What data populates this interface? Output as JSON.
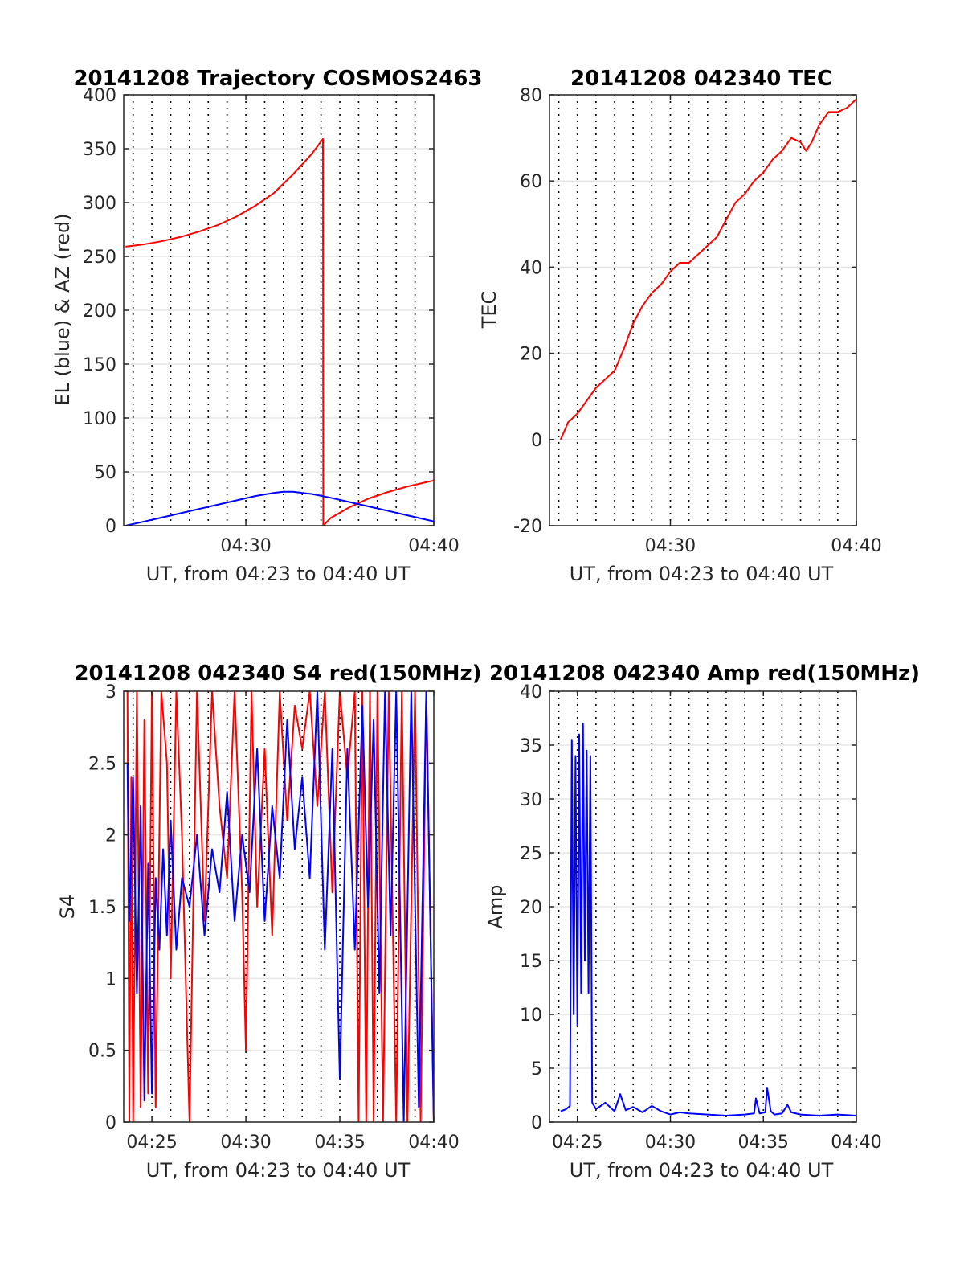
{
  "colors": {
    "elevation": "#0000ff",
    "azimuth": "#ff0000",
    "tec": "#ff0000",
    "s4_red": "#ff0000",
    "s4_blue": "#0000ff",
    "amp": "#0000ff",
    "grid": "#e6e6e6",
    "axis": "#262626"
  },
  "chart_data": [
    {
      "id": "trajectory",
      "type": "line",
      "title": "20141208 Trajectory COSMOS2463",
      "xlabel": "UT, from 04:23 to 04:40 UT",
      "ylabel": "EL (blue) & AZ (red)",
      "xlim": [
        23.5,
        40
      ],
      "ylim": [
        0,
        400
      ],
      "xticks": [
        30,
        40
      ],
      "xtick_labels": [
        "04:30",
        "04:40"
      ],
      "yticks": [
        0,
        50,
        100,
        150,
        200,
        250,
        300,
        350,
        400
      ],
      "ytick_labels": [
        "0",
        "50",
        "100",
        "150",
        "200",
        "250",
        "300",
        "350",
        "400"
      ],
      "minute_lines": [
        24,
        25,
        26,
        27,
        28,
        29,
        30,
        31,
        32,
        33,
        34,
        35,
        36,
        37,
        38,
        39
      ],
      "grid": true,
      "series": [
        {
          "color_key": "azimuth",
          "x": [
            23.6,
            24.5,
            25.5,
            26.5,
            27.5,
            28.5,
            29.5,
            30.5,
            31.5,
            32.5,
            33.5,
            34.1,
            34.12,
            34.5,
            35.5,
            36.5,
            37.5,
            38.5,
            39.5,
            40
          ],
          "y": [
            259,
            261,
            264,
            268,
            273,
            279,
            287,
            297,
            309,
            326,
            345,
            359,
            0,
            7,
            17,
            25,
            31,
            36,
            40,
            42
          ]
        },
        {
          "color_key": "elevation",
          "x": [
            23.6,
            24.5,
            25.5,
            26.5,
            27.5,
            28.5,
            29.5,
            30.5,
            31.5,
            32,
            32.5,
            33.5,
            34.5,
            35.5,
            36.5,
            37.5,
            38.5,
            39.5,
            40
          ],
          "y": [
            0,
            3.5,
            7.5,
            11.5,
            15.5,
            19.5,
            23.5,
            27.5,
            30.5,
            31.5,
            31.5,
            29.5,
            26,
            22,
            18,
            14,
            10,
            6,
            4
          ]
        }
      ]
    },
    {
      "id": "tec",
      "type": "line",
      "title": "20141208 042340 TEC",
      "xlabel": "UT, from 04:23 to 04:40 UT",
      "ylabel": "TEC",
      "xlim": [
        23.5,
        40
      ],
      "ylim": [
        -20,
        80
      ],
      "xticks": [
        30,
        40
      ],
      "xtick_labels": [
        "04:30",
        "04:40"
      ],
      "yticks": [
        -20,
        0,
        20,
        40,
        60,
        80
      ],
      "ytick_labels": [
        "-20",
        "0",
        "20",
        "40",
        "60",
        "80"
      ],
      "minute_lines": [
        24,
        25,
        26,
        27,
        28,
        29,
        30,
        31,
        32,
        33,
        34,
        35,
        36,
        37,
        38,
        39
      ],
      "grid": true,
      "series": [
        {
          "color_key": "tec",
          "x": [
            24.1,
            24.5,
            25.0,
            25.5,
            26.0,
            26.5,
            27.0,
            27.5,
            28.0,
            28.5,
            29.0,
            29.5,
            30.0,
            30.5,
            31.0,
            31.5,
            32.0,
            32.5,
            33.0,
            33.5,
            34.0,
            34.5,
            35.0,
            35.5,
            36.0,
            36.5,
            37.0,
            37.3,
            37.6,
            38.0,
            38.5,
            39.0,
            39.5,
            40.0
          ],
          "y": [
            0,
            4,
            6,
            9,
            12,
            14,
            16,
            21,
            27,
            31,
            34,
            36,
            39,
            41,
            41,
            43,
            45,
            47,
            51,
            55,
            57,
            60,
            62,
            65,
            67,
            70,
            69,
            67,
            69,
            73,
            76,
            76,
            77,
            79
          ]
        }
      ]
    },
    {
      "id": "s4",
      "type": "line",
      "title": "20141208 042340 S4 red(150MHz)",
      "xlabel": "UT, from 04:23 to 04:40 UT",
      "ylabel": "S4",
      "xlim": [
        23.5,
        40
      ],
      "ylim": [
        0,
        3
      ],
      "xticks": [
        25,
        30,
        35,
        40
      ],
      "xtick_labels": [
        "04:25",
        "04:30",
        "04:35",
        "04:40"
      ],
      "yticks": [
        0,
        0.5,
        1,
        1.5,
        2,
        2.5,
        3
      ],
      "ytick_labels": [
        "0",
        "0.5",
        "1",
        "1.5",
        "2",
        "2.5",
        "3"
      ],
      "minute_lines": [
        24,
        25,
        26,
        27,
        28,
        29,
        30,
        31,
        32,
        33,
        34,
        35,
        36,
        37,
        38,
        39
      ],
      "grid": true,
      "series": [
        {
          "color_key": "s4_red",
          "x": [
            23.7,
            23.8,
            23.9,
            24.0,
            24.2,
            24.4,
            24.6,
            24.8,
            25.0,
            25.2,
            25.5,
            25.8,
            26.0,
            26.3,
            26.6,
            27.0,
            27.4,
            27.8,
            28.2,
            28.6,
            29.0,
            29.4,
            29.8,
            30.0,
            30.3,
            30.6,
            31.0,
            31.4,
            31.8,
            32.2,
            32.6,
            33.0,
            33.4,
            33.8,
            34.2,
            34.6,
            35.0,
            35.4,
            35.8,
            36.0,
            36.2,
            36.4,
            36.6,
            36.8,
            37.0,
            37.3,
            37.6,
            38.0,
            38.3,
            38.6,
            39.0,
            39.3,
            39.6,
            40.0
          ],
          "y": [
            3,
            0,
            2.4,
            0,
            3,
            0.1,
            2.8,
            0.2,
            3,
            0.1,
            3,
            2.5,
            1.0,
            3,
            2.0,
            0,
            3,
            1.4,
            3,
            2.2,
            1.7,
            3,
            1.6,
            0.5,
            3,
            1.5,
            2.6,
            1.3,
            3,
            2.1,
            2.9,
            2.6,
            3,
            2.2,
            3,
            1.6,
            3,
            2.4,
            3,
            0,
            3,
            0,
            3,
            0,
            3,
            0,
            3,
            0,
            3,
            0,
            3,
            0,
            3,
            0
          ]
        },
        {
          "color_key": "s4_blue",
          "x": [
            23.7,
            23.8,
            24.0,
            24.2,
            24.4,
            24.6,
            24.8,
            25.0,
            25.2,
            25.4,
            25.6,
            25.8,
            26.0,
            26.3,
            26.6,
            27.0,
            27.4,
            27.8,
            28.2,
            28.6,
            29.0,
            29.4,
            29.8,
            30.2,
            30.6,
            31.0,
            31.4,
            31.8,
            32.2,
            32.6,
            33.0,
            33.4,
            33.8,
            34.2,
            34.6,
            35.0,
            35.4,
            35.8,
            36.2,
            36.5,
            36.8,
            37.1,
            37.4,
            37.7,
            38.0,
            38.4,
            38.8,
            39.2,
            39.6,
            40.0
          ],
          "y": [
            2.5,
            1.4,
            2.4,
            0.9,
            2.2,
            0.15,
            1.8,
            0.2,
            1.7,
            1.2,
            1.9,
            1.3,
            2.1,
            1.2,
            1.7,
            1.5,
            2.0,
            1.3,
            1.9,
            1.6,
            2.3,
            1.4,
            2.0,
            1.6,
            2.6,
            1.4,
            2.2,
            1.7,
            2.8,
            1.9,
            2.4,
            1.7,
            3,
            1.2,
            2.6,
            0.3,
            2.6,
            1.2,
            2.9,
            1.5,
            2.8,
            0.9,
            3,
            1.3,
            3,
            0,
            3,
            0.1,
            3,
            0
          ]
        }
      ]
    },
    {
      "id": "amp",
      "type": "line",
      "title": "20141208 042340 Amp red(150MHz)",
      "xlabel": "UT, from 04:23 to 04:40 UT",
      "ylabel": "Amp",
      "xlim": [
        23.5,
        40
      ],
      "ylim": [
        0,
        40
      ],
      "xticks": [
        25,
        30,
        35,
        40
      ],
      "xtick_labels": [
        "04:25",
        "04:30",
        "04:35",
        "04:40"
      ],
      "yticks": [
        0,
        5,
        10,
        15,
        20,
        25,
        30,
        35,
        40
      ],
      "ytick_labels": [
        "0",
        "5",
        "10",
        "15",
        "20",
        "25",
        "30",
        "35",
        "40"
      ],
      "minute_lines": [
        24,
        25,
        26,
        27,
        28,
        29,
        30,
        31,
        32,
        33,
        34,
        35,
        36,
        37,
        38,
        39
      ],
      "grid": true,
      "series": [
        {
          "color_key": "amp",
          "x": [
            24.1,
            24.4,
            24.6,
            24.7,
            24.8,
            24.9,
            25.0,
            25.1,
            25.2,
            25.3,
            25.4,
            25.5,
            25.6,
            25.7,
            25.8,
            26.0,
            26.5,
            27.0,
            27.3,
            27.6,
            28.0,
            28.5,
            29.0,
            29.5,
            30.0,
            30.5,
            31.0,
            32.0,
            33.0,
            34.0,
            34.5,
            34.6,
            34.8,
            35.1,
            35.2,
            35.4,
            35.6,
            36.0,
            36.3,
            36.5,
            37.0,
            38.0,
            39.0,
            40.0
          ],
          "y": [
            1.0,
            1.2,
            1.5,
            35.5,
            10,
            34,
            9,
            36,
            12,
            37,
            15,
            34.5,
            12,
            34,
            1.8,
            1.2,
            1.8,
            1.0,
            2.6,
            1.1,
            1.4,
            0.9,
            1.5,
            1.0,
            0.7,
            0.9,
            0.8,
            0.7,
            0.6,
            0.7,
            0.8,
            2.2,
            0.8,
            0.9,
            3.2,
            1.0,
            0.7,
            0.8,
            1.6,
            0.9,
            0.7,
            0.6,
            0.7,
            0.6
          ]
        }
      ]
    }
  ]
}
